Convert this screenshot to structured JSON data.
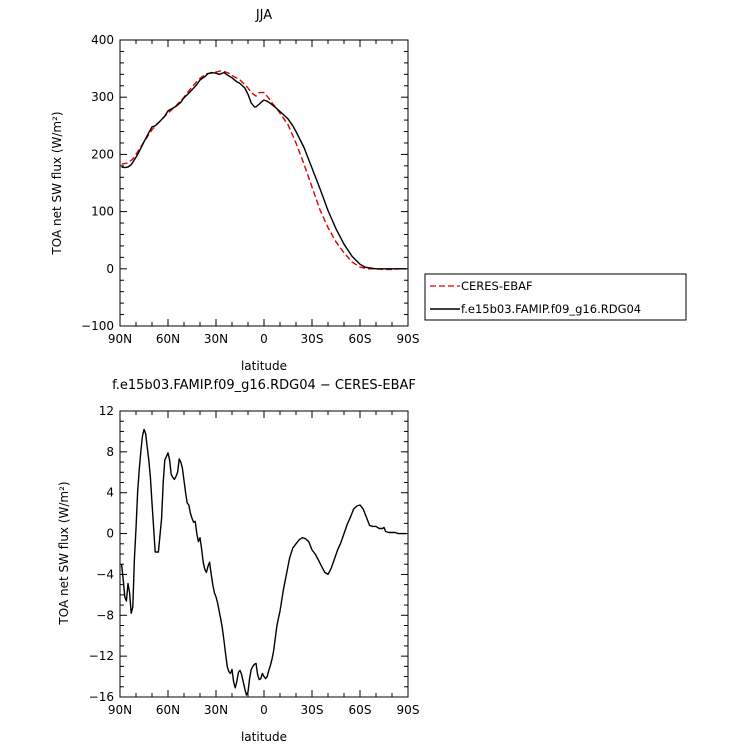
{
  "chart_data": [
    {
      "type": "line",
      "title": "JJA",
      "xlabel": "latitude",
      "ylabel": "TOA net SW flux (W/m²)",
      "xlim": [
        90,
        -90
      ],
      "ylim": [
        -100,
        400
      ],
      "yticks": [
        "−100",
        "0",
        "100",
        "200",
        "300",
        "400"
      ],
      "ytick_values": [
        -100,
        0,
        100,
        200,
        300,
        400
      ],
      "xticks": [
        "90N",
        "60N",
        "30N",
        "0",
        "30S",
        "60S",
        "90S"
      ],
      "xtick_values": [
        90,
        60,
        30,
        0,
        -30,
        -60,
        -90
      ],
      "legend_position": "right",
      "series": [
        {
          "name": "CERES-EBAF",
          "color": "#e00000",
          "dash": "dashed",
          "x": [
            89,
            85,
            82,
            80,
            75,
            70,
            65,
            60,
            55,
            50,
            45,
            40,
            36,
            33,
            30,
            27,
            25,
            22,
            20,
            15,
            12,
            10,
            8,
            5,
            3,
            0,
            -3,
            -5,
            -8,
            -10,
            -15,
            -20,
            -25,
            -30,
            -35,
            -40,
            -45,
            -50,
            -55,
            -60,
            -63,
            -65,
            -70,
            -75,
            -80,
            -85,
            -89
          ],
          "y": [
            183,
            185,
            192,
            200,
            222,
            243,
            258,
            272,
            285,
            300,
            318,
            333,
            341,
            342,
            344,
            346,
            345,
            342,
            338,
            330,
            322,
            316,
            308,
            302,
            308,
            308,
            298,
            290,
            280,
            272,
            252,
            220,
            183,
            143,
            103,
            72,
            47,
            28,
            12,
            3,
            1,
            0,
            0,
            -1,
            -1,
            0,
            0
          ]
        },
        {
          "name": "f.e15b03.FAMIP.f09_g16.RDG04",
          "color": "#000000",
          "dash": "solid",
          "x": [
            89,
            87,
            85,
            83,
            80,
            78,
            75,
            72,
            70,
            68,
            65,
            62,
            60,
            57,
            55,
            52,
            50,
            47,
            45,
            42,
            40,
            37,
            35,
            33,
            30,
            28,
            25,
            23,
            20,
            17,
            15,
            12,
            10,
            8,
            6,
            5,
            3,
            1,
            0,
            -2,
            -5,
            -8,
            -10,
            -12,
            -15,
            -18,
            -20,
            -25,
            -30,
            -35,
            -40,
            -45,
            -50,
            -55,
            -60,
            -63,
            -65,
            -70,
            -75,
            -80,
            -85,
            -89
          ],
          "y": [
            178,
            177,
            178,
            182,
            195,
            205,
            222,
            238,
            248,
            250,
            258,
            267,
            276,
            281,
            284,
            291,
            299,
            307,
            313,
            322,
            330,
            336,
            341,
            343,
            342,
            340,
            343,
            339,
            334,
            327,
            324,
            316,
            305,
            290,
            283,
            283,
            288,
            293,
            295,
            293,
            287,
            280,
            275,
            270,
            262,
            250,
            240,
            212,
            176,
            140,
            102,
            70,
            43,
            22,
            8,
            3,
            2,
            0,
            0,
            0,
            0,
            0
          ]
        }
      ]
    },
    {
      "type": "line",
      "title": "f.e15b03.FAMIP.f09_g16.RDG04 − CERES-EBAF",
      "xlabel": "latitude",
      "ylabel": "TOA net SW flux (W/m²)",
      "xlim": [
        90,
        -90
      ],
      "ylim": [
        -16,
        12
      ],
      "yticks": [
        "−16",
        "−12",
        "−8",
        "−4",
        "0",
        "4",
        "8",
        "12"
      ],
      "ytick_values": [
        -16,
        -12,
        -8,
        -4,
        0,
        4,
        8,
        12
      ],
      "xticks": [
        "90N",
        "60N",
        "30N",
        "0",
        "30S",
        "60S",
        "90S"
      ],
      "xtick_values": [
        90,
        60,
        30,
        0,
        -30,
        -60,
        -90
      ],
      "series": [
        {
          "color": "#000000",
          "x": [
            89,
            88,
            87,
            86,
            85,
            84,
            83,
            82,
            81,
            80,
            79,
            78,
            77,
            76,
            75,
            74,
            73,
            72,
            71,
            70,
            68,
            66,
            64,
            63,
            62,
            60,
            59,
            58,
            57,
            56,
            55,
            54,
            53,
            52,
            51,
            50,
            49,
            48,
            47,
            46,
            45,
            44,
            43,
            42,
            41,
            40,
            39,
            38,
            37,
            36,
            35,
            34,
            33,
            32,
            31,
            30,
            29,
            28,
            27,
            26,
            25,
            24,
            23,
            22,
            21,
            20,
            19,
            18,
            17,
            16,
            15,
            14,
            13,
            12,
            11,
            10,
            9,
            8,
            7,
            6,
            5,
            4,
            3,
            2,
            1,
            0,
            -1,
            -2,
            -3,
            -4,
            -5,
            -6,
            -7,
            -8,
            -9,
            -10,
            -12,
            -14,
            -16,
            -18,
            -20,
            -22,
            -24,
            -26,
            -28,
            -30,
            -32,
            -34,
            -36,
            -38,
            -40,
            -42,
            -44,
            -46,
            -48,
            -50,
            -52,
            -54,
            -56,
            -58,
            -60,
            -62,
            -64,
            -66,
            -68,
            -70,
            -72,
            -74,
            -75,
            -76,
            -78,
            -80,
            -82,
            -84,
            -86,
            -89
          ],
          "y": [
            -3,
            -4.5,
            -6.2,
            -6.6,
            -4.9,
            -5.8,
            -7.8,
            -7.2,
            -2.5,
            0.5,
            4,
            6.2,
            8,
            9.5,
            10.2,
            9.8,
            8.5,
            7.2,
            5.5,
            3,
            -1.8,
            -1.8,
            1.5,
            5,
            7.2,
            7.9,
            7.2,
            5.8,
            5.5,
            5.3,
            5.6,
            6,
            7.3,
            7,
            6.4,
            5.2,
            4,
            3,
            2.8,
            2,
            1.5,
            1.1,
            1.2,
            0,
            -0.8,
            -0.4,
            -1.5,
            -2.8,
            -3.5,
            -3.8,
            -3.2,
            -2.8,
            -4,
            -5,
            -5.8,
            -6.2,
            -6.8,
            -7.6,
            -8.4,
            -9.3,
            -10.5,
            -11.8,
            -13,
            -13.5,
            -13.7,
            -13.3,
            -14.5,
            -15.1,
            -14.5,
            -13.6,
            -13.4,
            -13.8,
            -14.5,
            -15.2,
            -15.8,
            -15.5,
            -14.2,
            -13.3,
            -13,
            -12.8,
            -12.7,
            -13.8,
            -14.3,
            -14.2,
            -13.7,
            -14,
            -14.2,
            -14,
            -13.4,
            -12.9,
            -12.3,
            -11.5,
            -10.3,
            -9.1,
            -8.3,
            -7.6,
            -5.6,
            -4,
            -2.4,
            -1.4,
            -1,
            -0.6,
            -0.4,
            -0.5,
            -0.8,
            -1.6,
            -2,
            -2.6,
            -3.2,
            -3.8,
            -4,
            -3.4,
            -2.5,
            -1.6,
            -0.9,
            0,
            0.9,
            1.6,
            2.4,
            2.7,
            2.8,
            2.4,
            1.6,
            0.8,
            0.7,
            0.7,
            0.5,
            0.5,
            0.6,
            0.2,
            0.1,
            0.1,
            0.1,
            0,
            0,
            0
          ]
        }
      ]
    }
  ]
}
